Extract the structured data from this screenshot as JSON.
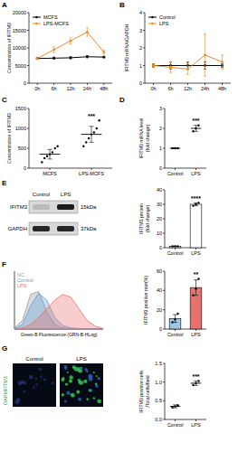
{
  "panel_labels": [
    "A",
    "B",
    "C",
    "D",
    "E",
    "F",
    "G"
  ],
  "chart_data": [
    {
      "type": "line",
      "ylabel": "Concentration of IFITM3",
      "categories": [
        "0h",
        "6h",
        "12h",
        "24h",
        "48h"
      ],
      "ylim": [
        0,
        20000
      ],
      "yticks": [
        0,
        5000,
        10000,
        15000,
        20000
      ],
      "legend": "top-left",
      "marker": "circle",
      "series": [
        {
          "name": "MCFS",
          "color": "#000000",
          "values": [
            7000,
            7100,
            7200,
            7500,
            7400
          ],
          "errors": [
            200,
            300,
            300,
            300,
            200
          ]
        },
        {
          "name": "LPS-MCFS",
          "color": "#f08a24",
          "values": [
            7000,
            9500,
            12000,
            14500,
            8800
          ],
          "errors": [
            200,
            800,
            900,
            1200,
            600
          ]
        }
      ]
    },
    {
      "type": "line",
      "ylabel": "IFITM3 mRNA/GAPDH",
      "categories": [
        "0h",
        "6h",
        "12h",
        "24h",
        "48h"
      ],
      "ylim": [
        0,
        4
      ],
      "yticks": [
        0,
        1,
        2,
        3,
        4
      ],
      "legend": "top-left",
      "marker": "circle",
      "series": [
        {
          "name": "Control",
          "color": "#000000",
          "values": [
            1,
            1,
            1,
            1,
            1
          ],
          "errors": [
            0.1,
            0.2,
            0.2,
            0.2,
            0.1
          ]
        },
        {
          "name": "LPS",
          "color": "#f08a24",
          "values": [
            1,
            0.9,
            0.8,
            1.6,
            1.2
          ],
          "errors": [
            0.1,
            0.3,
            0.3,
            1.2,
            0.4
          ]
        }
      ]
    },
    {
      "type": "dot",
      "ylabel": "Concentration of IFITM3",
      "categories": [
        "MCFS",
        "LPS-MCFS"
      ],
      "ylim": [
        0,
        1500
      ],
      "yticks": [
        0,
        500,
        1000,
        1500
      ],
      "values": [
        350,
        850
      ],
      "errors": [
        120,
        200
      ],
      "points": [
        [
          150,
          250,
          300,
          350,
          400,
          500,
          550
        ],
        [
          550,
          650,
          750,
          850,
          900,
          1000,
          1200
        ]
      ],
      "annotation": "***"
    },
    {
      "type": "dot",
      "ylabel": [
        "IFITM3 mRNA level",
        "(fold change)"
      ],
      "categories": [
        "Control",
        "LPS"
      ],
      "ylim": [
        0,
        3
      ],
      "yticks": [
        0,
        1,
        2,
        3
      ],
      "values": [
        1,
        2
      ],
      "errors": [
        0,
        0.15
      ],
      "points": [
        [
          1,
          1,
          1
        ],
        [
          1.85,
          2,
          2.15
        ]
      ],
      "annotation": "***"
    },
    {
      "type": "bar",
      "ylabel": [
        "IFITM3 protein",
        "(fold change)"
      ],
      "categories": [
        "Control",
        "LPS"
      ],
      "ylim": [
        0,
        40
      ],
      "yticks": [
        0,
        10,
        20,
        30,
        40
      ],
      "values": [
        1,
        30
      ],
      "errors": [
        0,
        1
      ],
      "colors": [
        "#ffffff",
        "#ffffff"
      ],
      "points": [
        [
          1,
          1,
          1
        ],
        [
          29,
          30,
          31
        ]
      ],
      "annotation": "****"
    },
    {
      "type": "bar",
      "ylabel": "IFITM3 positive rate(%)",
      "categories": [
        "Control",
        "LPS"
      ],
      "ylim": [
        0,
        60
      ],
      "yticks": [
        0,
        20,
        40,
        60
      ],
      "values": [
        11,
        43
      ],
      "errors": [
        4,
        8
      ],
      "colors": [
        "#9ec8ea",
        "#e8716f"
      ],
      "points": [
        [
          7,
          10,
          16
        ],
        [
          35,
          42,
          52
        ]
      ],
      "annotation": "**"
    },
    {
      "type": "dot",
      "ylabel": [
        "IFITM3 positive cells",
        "/Total cells/field"
      ],
      "categories": [
        "Control",
        "LPS"
      ],
      "ylim": [
        0,
        1.5
      ],
      "yticks": [
        {
          "value": 0,
          "label": "0.0"
        },
        0.5,
        {
          "value": 1,
          "label": "1.0"
        },
        1.5
      ],
      "values": [
        0.35,
        0.97
      ],
      "errors": [
        0.04,
        0.06
      ],
      "points": [
        [
          0.32,
          0.35,
          0.38
        ],
        [
          0.92,
          0.97,
          1.03
        ]
      ],
      "annotation": "***"
    },
    {
      "type": "area",
      "xlabel": "Green-B Fluorescence (GRN-B-HLog)",
      "tick_labels": false,
      "legend": "top-left",
      "x": [
        0,
        1,
        2,
        3,
        4,
        5,
        6,
        7,
        8,
        9,
        10,
        11
      ],
      "xlim": [
        0,
        11
      ],
      "ylim": [
        0,
        100
      ],
      "series": [
        {
          "name": "NC",
          "color": "#9a9a9a",
          "values": [
            2,
            15,
            60,
            65,
            30,
            8,
            2,
            0,
            0,
            0,
            0,
            0
          ]
        },
        {
          "name": "Control",
          "color": "#5aa0d8",
          "values": [
            1,
            8,
            40,
            62,
            50,
            20,
            6,
            2,
            1,
            0,
            0,
            0
          ]
        },
        {
          "name": "LPS",
          "color": "#e8716f",
          "values": [
            0,
            2,
            8,
            20,
            35,
            50,
            60,
            55,
            35,
            15,
            5,
            1
          ]
        }
      ]
    }
  ],
  "blot": {
    "lanes": [
      "Control",
      "LPS"
    ],
    "rows": [
      {
        "name": "IFITM3",
        "size": "15kDa"
      },
      {
        "name": "GAPDH",
        "size": "37kDa"
      }
    ]
  },
  "image": {
    "label": "DAPI/IFITM3",
    "conditions": [
      "Control",
      "LPS"
    ]
  }
}
